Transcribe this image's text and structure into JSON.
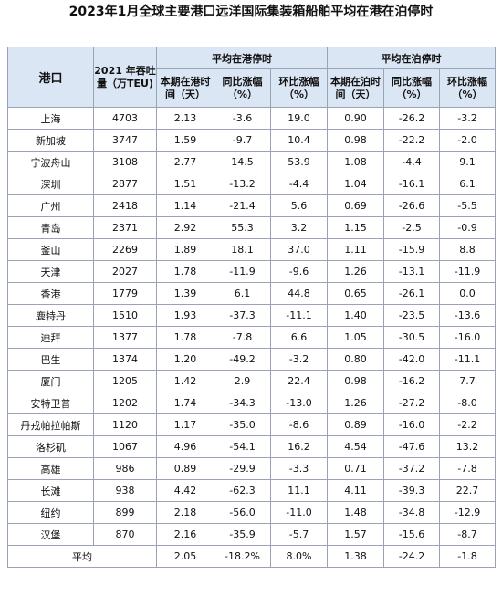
{
  "title": "2023年1月全球主要港口远洋国际集装箱船舶平均在港在泊停时",
  "headers": {
    "port": "港口",
    "teu": "2021 年吞吐量（万TEU)",
    "group_port": "平均在港停时",
    "group_berth": "平均在泊停时",
    "period_port": "本期在港时间（天）",
    "yoy": "同比涨幅（%）",
    "mom": "环比涨幅（%）",
    "period_berth": "本期在泊时间（天）",
    "yoy2": "同比涨幅（%）",
    "mom2": "环比涨幅（%）"
  },
  "rows": [
    [
      "上海",
      "4703",
      "2.13",
      "-3.6",
      "19.0",
      "0.90",
      "-26.2",
      "-3.2"
    ],
    [
      "新加坡",
      "3747",
      "1.59",
      "-9.7",
      "10.4",
      "0.98",
      "-22.2",
      "-2.0"
    ],
    [
      "宁波舟山",
      "3108",
      "2.77",
      "14.5",
      "53.9",
      "1.08",
      "-4.4",
      "9.1"
    ],
    [
      "深圳",
      "2877",
      "1.51",
      "-13.2",
      "-4.4",
      "1.04",
      "-16.1",
      "6.1"
    ],
    [
      "广州",
      "2418",
      "1.14",
      "-21.4",
      "5.6",
      "0.69",
      "-26.6",
      "-5.5"
    ],
    [
      "青岛",
      "2371",
      "2.92",
      "55.3",
      "3.2",
      "1.15",
      "-2.5",
      "-0.9"
    ],
    [
      "釜山",
      "2269",
      "1.89",
      "18.1",
      "37.0",
      "1.11",
      "-15.9",
      "8.8"
    ],
    [
      "天津",
      "2027",
      "1.78",
      "-11.9",
      "-9.6",
      "1.26",
      "-13.1",
      "-11.9"
    ],
    [
      "香港",
      "1779",
      "1.39",
      "6.1",
      "44.8",
      "0.65",
      "-26.1",
      "0.0"
    ],
    [
      "鹿特丹",
      "1510",
      "1.93",
      "-37.3",
      "-11.1",
      "1.40",
      "-23.5",
      "-13.6"
    ],
    [
      "迪拜",
      "1377",
      "1.78",
      "-7.8",
      "6.6",
      "1.05",
      "-30.5",
      "-16.0"
    ],
    [
      "巴生",
      "1374",
      "1.20",
      "-49.2",
      "-3.2",
      "0.80",
      "-42.0",
      "-11.1"
    ],
    [
      "厦门",
      "1205",
      "1.42",
      "2.9",
      "22.4",
      "0.98",
      "-16.2",
      "7.7"
    ],
    [
      "安特卫普",
      "1202",
      "1.74",
      "-34.3",
      "-13.0",
      "1.26",
      "-27.2",
      "-8.0"
    ],
    [
      "丹戎帕拉帕斯",
      "1120",
      "1.17",
      "-35.0",
      "-8.6",
      "0.89",
      "-16.0",
      "-2.2"
    ],
    [
      "洛杉矶",
      "1067",
      "4.96",
      "-54.1",
      "16.2",
      "4.54",
      "-47.6",
      "13.2"
    ],
    [
      "高雄",
      "986",
      "0.89",
      "-29.9",
      "-3.3",
      "0.71",
      "-37.2",
      "-7.8"
    ],
    [
      "长滩",
      "938",
      "4.42",
      "-62.3",
      "11.1",
      "4.11",
      "-39.3",
      "22.7"
    ],
    [
      "纽约",
      "899",
      "2.18",
      "-56.0",
      "-11.0",
      "1.48",
      "-34.8",
      "-12.9"
    ],
    [
      "汉堡",
      "870",
      "2.16",
      "-35.9",
      "-5.7",
      "1.57",
      "-15.6",
      "-8.7"
    ]
  ],
  "average": {
    "label": "平均",
    "values": [
      "2.05",
      "-18.2%",
      "8.0%",
      "1.38",
      "-24.2",
      "-1.8"
    ]
  }
}
